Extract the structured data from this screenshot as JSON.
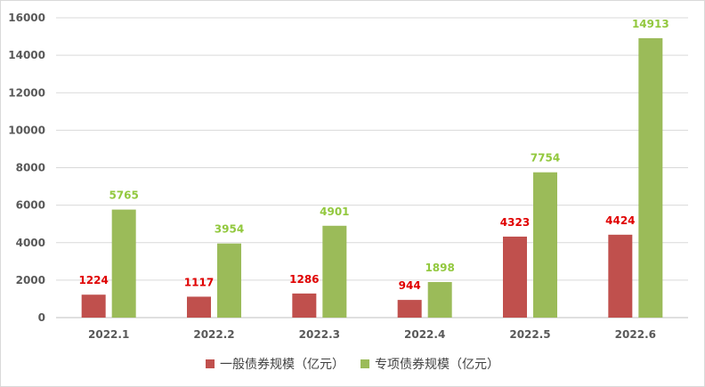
{
  "chart_data": {
    "type": "bar",
    "categories": [
      "2022.1",
      "2022.2",
      "2022.3",
      "2022.4",
      "2022.5",
      "2022.6"
    ],
    "series": [
      {
        "name": "一般债券规模（亿元）",
        "values": [
          1224,
          1117,
          1286,
          944,
          4323,
          4424
        ],
        "color": "#c0504d",
        "label_color": "#e00000"
      },
      {
        "name": "专项债券规模（亿元）",
        "values": [
          5765,
          3954,
          4901,
          1898,
          7754,
          14913
        ],
        "color": "#9bbb59",
        "label_color": "#92c83e"
      }
    ],
    "ylim": [
      0,
      16000
    ],
    "yticks": [
      0,
      2000,
      4000,
      6000,
      8000,
      10000,
      12000,
      14000,
      16000
    ],
    "grid": true,
    "legend_position": "bottom",
    "title": "",
    "xlabel": "",
    "ylabel": ""
  }
}
